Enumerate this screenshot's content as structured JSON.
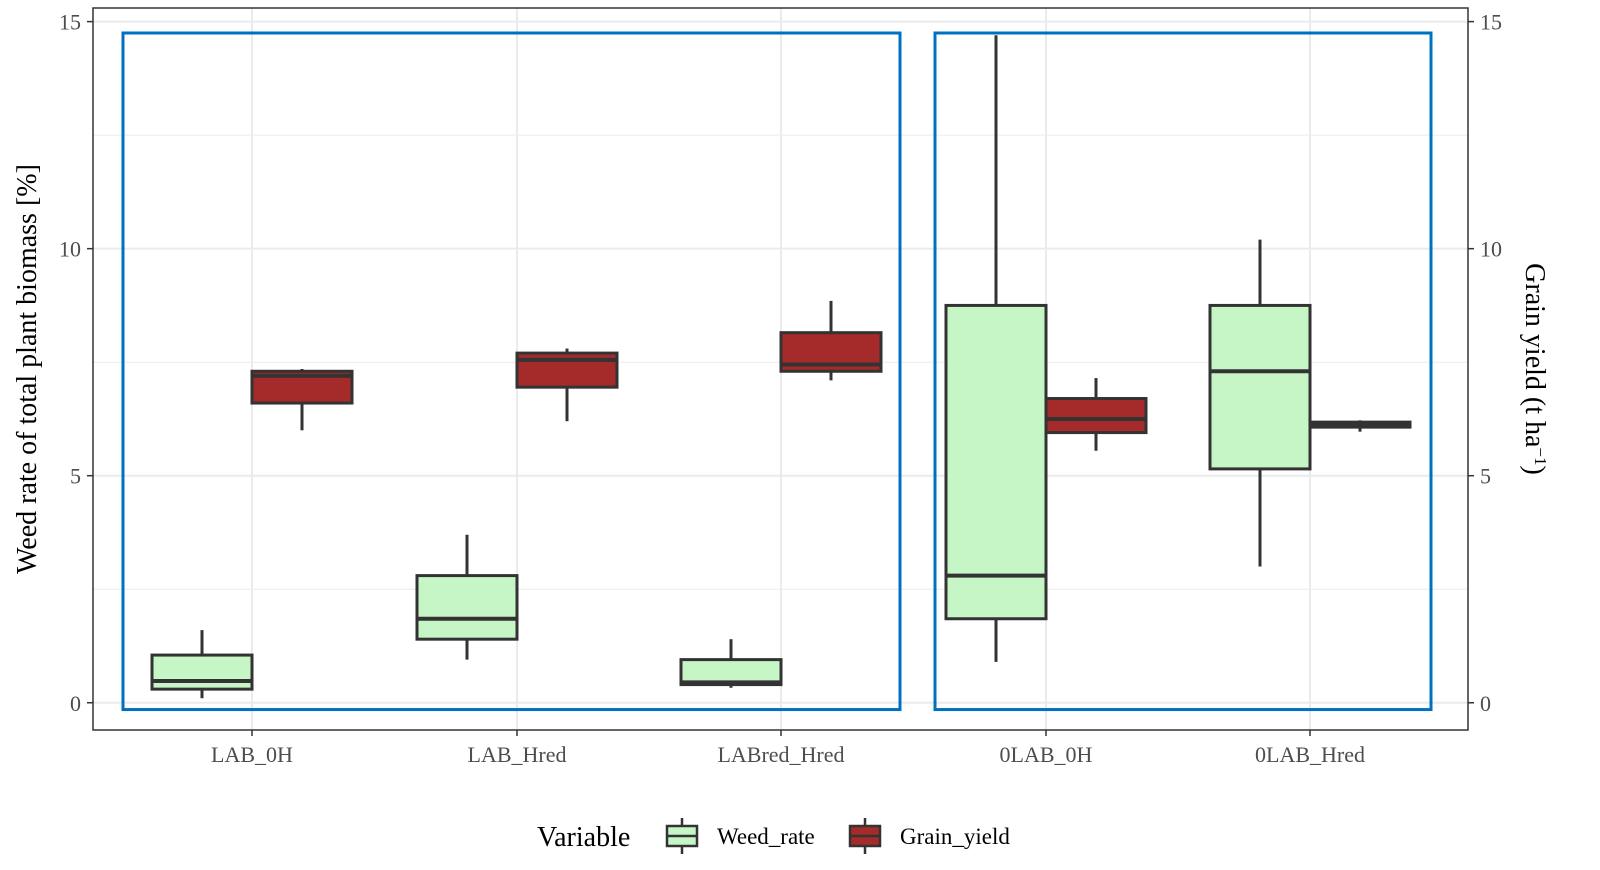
{
  "chart_data": {
    "type": "boxplot",
    "title": "",
    "ylabel_left": "Weed rate of total plant biomass [%]",
    "ylabel_right_base": "Grain yield (t ha",
    "ylabel_right_sup": "−1",
    "ylabel_right_close": ")",
    "ylim": [
      -0.6,
      15.3
    ],
    "yticks": [
      0,
      5,
      10,
      15
    ],
    "ytick_labels": [
      "0",
      "5",
      "10",
      "15"
    ],
    "categories": [
      "LAB_0H",
      "LAB_Hred",
      "LABred_Hred",
      "0LAB_0H",
      "0LAB_Hred"
    ],
    "grid": true,
    "legend": {
      "title": "Variable",
      "position": "bottom",
      "entries": [
        {
          "name": "Weed_rate",
          "color": "#c6f5c6"
        },
        {
          "name": "Grain_yield",
          "color": "#a52a2a"
        }
      ]
    },
    "series": [
      {
        "name": "Weed_rate",
        "color": "#c6f5c6",
        "boxes": [
          {
            "category": "LAB_0H",
            "min": 0.1,
            "q1": 0.3,
            "median": 0.48,
            "q3": 1.05,
            "max": 1.6
          },
          {
            "category": "LAB_Hred",
            "min": 0.95,
            "q1": 1.4,
            "median": 1.85,
            "q3": 2.8,
            "max": 3.7
          },
          {
            "category": "LABred_Hred",
            "min": 0.33,
            "q1": 0.4,
            "median": 0.45,
            "q3": 0.95,
            "max": 1.4
          },
          {
            "category": "0LAB_0H",
            "min": 0.9,
            "q1": 1.85,
            "median": 2.8,
            "q3": 8.75,
            "max": 14.7
          },
          {
            "category": "0LAB_Hred",
            "min": 3.0,
            "q1": 5.15,
            "median": 7.3,
            "q3": 8.75,
            "max": 10.2
          }
        ]
      },
      {
        "name": "Grain_yield",
        "color": "#a52a2a",
        "boxes": [
          {
            "category": "LAB_0H",
            "min": 6.0,
            "q1": 6.6,
            "median": 7.2,
            "q3": 7.3,
            "max": 7.35
          },
          {
            "category": "LAB_Hred",
            "min": 6.2,
            "q1": 6.95,
            "median": 7.55,
            "q3": 7.7,
            "max": 7.8
          },
          {
            "category": "LABred_Hred",
            "min": 7.1,
            "q1": 7.3,
            "median": 7.45,
            "q3": 8.15,
            "max": 8.85
          },
          {
            "category": "0LAB_0H",
            "min": 5.55,
            "q1": 5.95,
            "median": 6.25,
            "q3": 6.7,
            "max": 7.15
          },
          {
            "category": "0LAB_Hred",
            "min": 5.97,
            "q1": 6.07,
            "median": 6.12,
            "q3": 6.18,
            "max": 6.22
          }
        ]
      }
    ],
    "highlight_groups": [
      {
        "categories": [
          "LAB_0H",
          "LAB_Hred",
          "LABred_Hred"
        ],
        "color": "#0070c0"
      },
      {
        "categories": [
          "0LAB_0H",
          "0LAB_Hred"
        ],
        "color": "#0070c0"
      }
    ]
  }
}
